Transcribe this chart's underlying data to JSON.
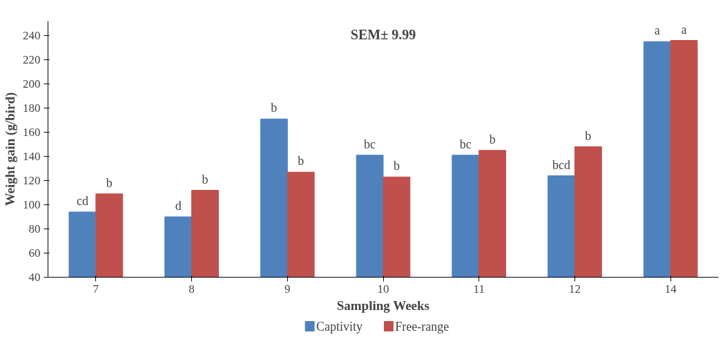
{
  "chart_data": {
    "type": "bar",
    "xlabel": "Sampling Weeks",
    "ylabel": "Weight gain (g/bird)",
    "categories": [
      "7",
      "8",
      "9",
      "10",
      "11",
      "12",
      "14"
    ],
    "series": [
      {
        "name": "Captivity",
        "color": "#4f81bd",
        "values": [
          94,
          90,
          171,
          141,
          141,
          124,
          235
        ],
        "value_labels": [
          "cd",
          "d",
          "b",
          "bc",
          "bc",
          "bcd",
          "a"
        ]
      },
      {
        "name": "Free-range",
        "color": "#c0504d",
        "values": [
          109,
          112,
          127,
          123,
          145,
          148,
          236
        ],
        "value_labels": [
          "b",
          "b",
          "b",
          "b",
          "b",
          "b",
          "a"
        ]
      }
    ],
    "ylim": [
      40,
      252
    ],
    "yticks": [
      40,
      60,
      80,
      100,
      120,
      140,
      160,
      180,
      200,
      220,
      240
    ],
    "annotations": [
      "SEM± 9.99"
    ],
    "grid": false,
    "legend": "bottom"
  }
}
